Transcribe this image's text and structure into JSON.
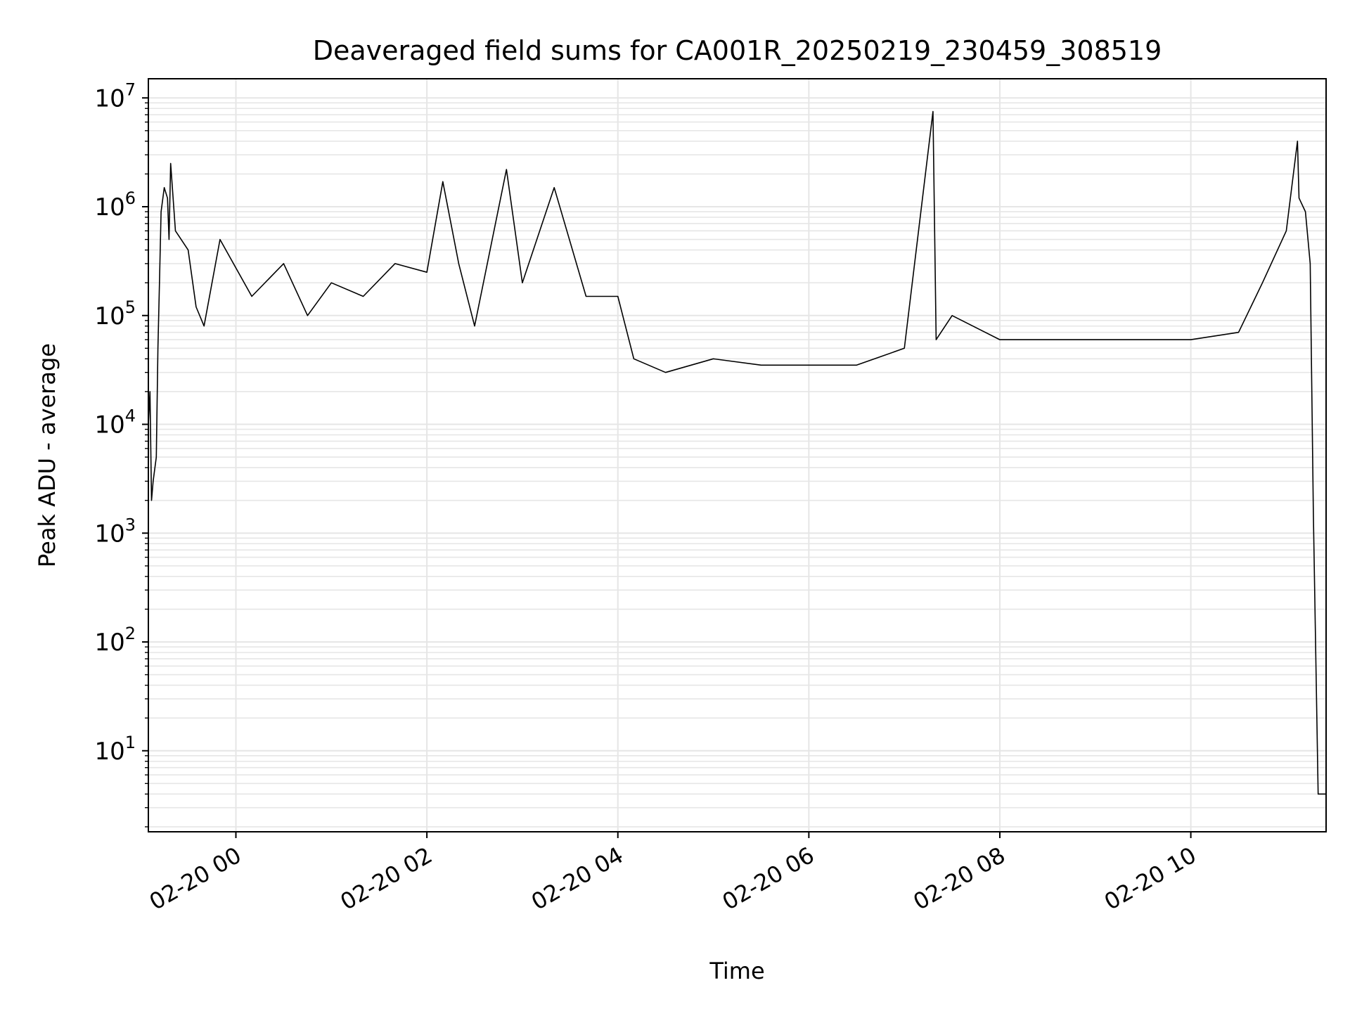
{
  "chart_data": {
    "type": "line",
    "title": "Deaveraged field sums for CA001R_20250219_230459_308519",
    "xlabel": "Time",
    "ylabel": "Peak ADU - average",
    "yscale": "log",
    "ylim": [
      1.8,
      15000000
    ],
    "xlim": [
      "02-19 23:05",
      "02-20 11:25"
    ],
    "grid": true,
    "line_color": "#000000",
    "grid_color": "#e6e6e6",
    "x_ticks": [
      {
        "value": "02-20 00:00",
        "label": "02-20 00"
      },
      {
        "value": "02-20 02:00",
        "label": "02-20 02"
      },
      {
        "value": "02-20 04:00",
        "label": "02-20 04"
      },
      {
        "value": "02-20 06:00",
        "label": "02-20 06"
      },
      {
        "value": "02-20 08:00",
        "label": "02-20 08"
      },
      {
        "value": "02-20 10:00",
        "label": "02-20 10"
      }
    ],
    "y_ticks": [
      {
        "value": 10,
        "base": "10",
        "exp": "1"
      },
      {
        "value": 100,
        "base": "10",
        "exp": "2"
      },
      {
        "value": 1000,
        "base": "10",
        "exp": "3"
      },
      {
        "value": 10000,
        "base": "10",
        "exp": "4"
      },
      {
        "value": 100000,
        "base": "10",
        "exp": "5"
      },
      {
        "value": 1000000,
        "base": "10",
        "exp": "6"
      },
      {
        "value": 10000000,
        "base": "10",
        "exp": "7"
      }
    ],
    "series": [
      {
        "points": [
          [
            "02-19 23:05",
            10000
          ],
          [
            "02-19 23:06",
            20000
          ],
          [
            "02-19 23:07",
            2000
          ],
          [
            "02-19 23:08",
            3000
          ],
          [
            "02-19 23:10",
            5000
          ],
          [
            "02-19 23:11",
            50000
          ],
          [
            "02-19 23:12",
            200000
          ],
          [
            "02-19 23:13",
            900000
          ],
          [
            "02-19 23:15",
            1500000
          ],
          [
            "02-19 23:17",
            1200000
          ],
          [
            "02-19 23:18",
            500000
          ],
          [
            "02-19 23:19",
            2500000
          ],
          [
            "02-19 23:22",
            600000
          ],
          [
            "02-19 23:30",
            400000
          ],
          [
            "02-19 23:35",
            120000
          ],
          [
            "02-19 23:40",
            80000
          ],
          [
            "02-19 23:50",
            500000
          ],
          [
            "02-20 00:10",
            150000
          ],
          [
            "02-20 00:30",
            300000
          ],
          [
            "02-20 00:45",
            100000
          ],
          [
            "02-20 01:00",
            200000
          ],
          [
            "02-20 01:20",
            150000
          ],
          [
            "02-20 01:40",
            300000
          ],
          [
            "02-20 02:00",
            250000
          ],
          [
            "02-20 02:10",
            1700000
          ],
          [
            "02-20 02:20",
            300000
          ],
          [
            "02-20 02:30",
            80000
          ],
          [
            "02-20 02:50",
            2200000
          ],
          [
            "02-20 03:00",
            200000
          ],
          [
            "02-20 03:20",
            1500000
          ],
          [
            "02-20 03:40",
            150000
          ],
          [
            "02-20 04:00",
            150000
          ],
          [
            "02-20 04:10",
            40000
          ],
          [
            "02-20 04:30",
            30000
          ],
          [
            "02-20 05:00",
            40000
          ],
          [
            "02-20 05:30",
            35000
          ],
          [
            "02-20 06:00",
            35000
          ],
          [
            "02-20 06:30",
            35000
          ],
          [
            "02-20 07:00",
            50000
          ],
          [
            "02-20 07:18",
            7500000
          ],
          [
            "02-20 07:20",
            60000
          ],
          [
            "02-20 07:30",
            100000
          ],
          [
            "02-20 08:00",
            60000
          ],
          [
            "02-20 08:30",
            60000
          ],
          [
            "02-20 09:00",
            60000
          ],
          [
            "02-20 09:30",
            60000
          ],
          [
            "02-20 10:00",
            60000
          ],
          [
            "02-20 10:30",
            70000
          ],
          [
            "02-20 10:45",
            200000
          ],
          [
            "02-20 11:00",
            600000
          ],
          [
            "02-20 11:07",
            4000000
          ],
          [
            "02-20 11:08",
            1200000
          ],
          [
            "02-20 11:12",
            900000
          ],
          [
            "02-20 11:15",
            300000
          ],
          [
            "02-20 11:17",
            1500
          ],
          [
            "02-20 11:20",
            4
          ],
          [
            "02-20 11:25",
            4
          ]
        ]
      }
    ]
  }
}
